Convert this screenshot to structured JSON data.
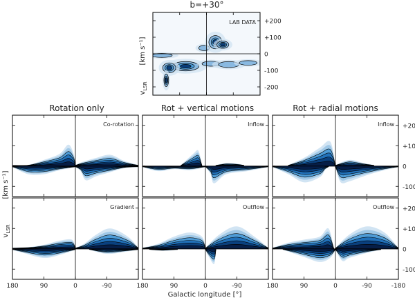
{
  "figure": {
    "top_title": "b=+30°",
    "column_titles": [
      "Rotation only",
      "Rot + vertical motions",
      "Rot + radial motions"
    ],
    "xlabel": "Galactic longitude [°]",
    "ylabel_main": "v",
    "ylabel_sub": "LSR",
    "ylabel_units": "[km s⁻¹]",
    "colors": {
      "light": "#cfe3f2",
      "mid": "#4a9ad6",
      "dark": "#0a3d7a",
      "deep": "#061c45",
      "line": "#000000"
    }
  },
  "chart_data": [
    {
      "id": "lab",
      "type": "heatmap",
      "title": "b=+30°",
      "label": "LAB DATA",
      "xlim": [
        180,
        -180
      ],
      "ylim": [
        -250,
        250
      ],
      "xticks": [],
      "yticks": [
        -200,
        -100,
        0,
        100,
        200
      ],
      "ytick_labels": [
        "-200",
        "-100",
        "0",
        "+100",
        "+200"
      ],
      "blobs": [
        {
          "l": 8,
          "v": 35,
          "dl": 18,
          "dv": 16,
          "level": 0.25
        },
        {
          "l": -30,
          "v": 70,
          "dl": 22,
          "dv": 40,
          "level": 0.95
        },
        {
          "l": -55,
          "v": 55,
          "dl": 20,
          "dv": 22,
          "level": 0.55
        },
        {
          "l": 150,
          "v": -10,
          "dl": 35,
          "dv": 12,
          "level": 0.3
        },
        {
          "l": 70,
          "v": -75,
          "dl": 45,
          "dv": 28,
          "level": 0.9
        },
        {
          "l": 125,
          "v": -85,
          "dl": 22,
          "dv": 30,
          "level": 0.5
        },
        {
          "l": 135,
          "v": -160,
          "dl": 8,
          "dv": 38,
          "level": 0.6
        },
        {
          "l": -15,
          "v": -60,
          "dl": 30,
          "dv": 15,
          "level": 0.35
        },
        {
          "l": -75,
          "v": -65,
          "dl": 35,
          "dv": 18,
          "level": 0.45
        },
        {
          "l": -140,
          "v": -55,
          "dl": 30,
          "dv": 14,
          "level": 0.25
        }
      ]
    },
    {
      "id": "co-rotation",
      "type": "area",
      "column": "Rotation only",
      "label": "Co-rotation",
      "xlim": [
        180,
        -180
      ],
      "ylim": [
        -150,
        250
      ],
      "upper": [
        [
          180,
          5
        ],
        [
          135,
          6
        ],
        [
          90,
          30
        ],
        [
          45,
          60
        ],
        [
          20,
          105
        ],
        [
          5,
          60
        ],
        [
          0,
          5
        ]
      ],
      "upper2": [
        [
          0,
          5
        ],
        [
          -20,
          20
        ],
        [
          -60,
          40
        ],
        [
          -100,
          55
        ],
        [
          -140,
          25
        ],
        [
          -180,
          5
        ]
      ],
      "lower": [
        [
          180,
          -5
        ],
        [
          135,
          -40
        ],
        [
          90,
          -40
        ],
        [
          45,
          -20
        ],
        [
          0,
          -5
        ]
      ],
      "lower2": [
        [
          0,
          -5
        ],
        [
          -15,
          -25
        ],
        [
          -30,
          -70
        ],
        [
          -60,
          -50
        ],
        [
          -100,
          -30
        ],
        [
          -140,
          -10
        ],
        [
          -180,
          -5
        ]
      ]
    },
    {
      "id": "inflow",
      "type": "area",
      "column": "Rot + vertical motions",
      "label": "Inflow",
      "xlim": [
        180,
        -180
      ],
      "ylim": [
        -150,
        250
      ],
      "upper": [
        [
          70,
          5
        ],
        [
          35,
          60
        ],
        [
          20,
          75
        ],
        [
          10,
          5
        ]
      ],
      "upper2": [
        [
          -30,
          5
        ],
        [
          -60,
          15
        ],
        [
          -90,
          12
        ],
        [
          -110,
          5
        ]
      ],
      "lower": [
        [
          180,
          -5
        ],
        [
          135,
          -25
        ],
        [
          90,
          -15
        ],
        [
          45,
          -20
        ],
        [
          0,
          -5
        ]
      ],
      "lower2": [
        [
          0,
          -5
        ],
        [
          -15,
          -40
        ],
        [
          -25,
          -85
        ],
        [
          -60,
          -40
        ],
        [
          -120,
          -25
        ],
        [
          -180,
          -5
        ]
      ]
    },
    {
      "id": "inflow-radial",
      "type": "area",
      "column": "Rot + radial motions",
      "label": "Inflow",
      "xlim": [
        180,
        -180
      ],
      "ylim": [
        -150,
        250
      ],
      "upper": [
        [
          135,
          5
        ],
        [
          90,
          40
        ],
        [
          45,
          90
        ],
        [
          15,
          120
        ],
        [
          0,
          5
        ]
      ],
      "upper2": [
        [
          0,
          5
        ],
        [
          -40,
          30
        ],
        [
          -80,
          15
        ],
        [
          -110,
          5
        ]
      ],
      "lower": [
        [
          180,
          -5
        ],
        [
          135,
          -40
        ],
        [
          90,
          -80
        ],
        [
          45,
          -55
        ],
        [
          30,
          -20
        ],
        [
          20,
          -5
        ]
      ],
      "lower2": [
        [
          0,
          -5
        ],
        [
          -15,
          -80
        ],
        [
          -40,
          -75
        ],
        [
          -90,
          -45
        ],
        [
          -140,
          -20
        ],
        [
          -180,
          -5
        ]
      ]
    },
    {
      "id": "gradient",
      "type": "area",
      "column": "Rotation only",
      "label": "Gradient",
      "xlim": [
        180,
        -180
      ],
      "ylim": [
        -150,
        250
      ],
      "upper": [
        [
          180,
          5
        ],
        [
          135,
          8
        ],
        [
          90,
          20
        ],
        [
          45,
          40
        ],
        [
          10,
          45
        ],
        [
          0,
          5
        ]
      ],
      "upper2": [
        [
          0,
          5
        ],
        [
          -25,
          25
        ],
        [
          -60,
          70
        ],
        [
          -100,
          100
        ],
        [
          -150,
          60
        ],
        [
          -180,
          5
        ]
      ],
      "lower": [
        [
          180,
          -5
        ],
        [
          150,
          -20
        ],
        [
          90,
          -45
        ],
        [
          45,
          -30
        ],
        [
          0,
          -5
        ]
      ],
      "lower2": [
        [
          -40,
          -5
        ],
        [
          -90,
          -25
        ],
        [
          -140,
          -15
        ],
        [
          -180,
          -5
        ]
      ]
    },
    {
      "id": "outflow",
      "type": "area",
      "column": "Rot + vertical motions",
      "label": "Outflow",
      "xlim": [
        180,
        -180
      ],
      "ylim": [
        -150,
        250
      ],
      "upper": [
        [
          180,
          5
        ],
        [
          135,
          25
        ],
        [
          90,
          60
        ],
        [
          45,
          80
        ],
        [
          10,
          60
        ],
        [
          0,
          5
        ]
      ],
      "upper2": [
        [
          0,
          5
        ],
        [
          -40,
          70
        ],
        [
          -90,
          110
        ],
        [
          -140,
          60
        ],
        [
          -180,
          5
        ]
      ],
      "lower": [
        [
          160,
          -5
        ],
        [
          120,
          -10
        ],
        [
          80,
          -5
        ]
      ],
      "lower2": [
        [
          0,
          -5
        ],
        [
          -10,
          -40
        ],
        [
          -25,
          -75
        ],
        [
          -30,
          -5
        ]
      ]
    },
    {
      "id": "outflow-radial",
      "type": "area",
      "column": "Rot + radial motions",
      "label": "Outflow",
      "xlim": [
        180,
        -180
      ],
      "ylim": [
        -150,
        250
      ],
      "upper": [
        [
          180,
          5
        ],
        [
          135,
          30
        ],
        [
          90,
          45
        ],
        [
          45,
          60
        ],
        [
          20,
          100
        ],
        [
          5,
          5
        ]
      ],
      "upper2": [
        [
          0,
          5
        ],
        [
          -40,
          70
        ],
        [
          -90,
          110
        ],
        [
          -140,
          80
        ],
        [
          -180,
          5
        ]
      ],
      "lower": [
        [
          150,
          -5
        ],
        [
          90,
          -40
        ],
        [
          45,
          -65
        ],
        [
          15,
          -45
        ],
        [
          0,
          -5
        ]
      ],
      "lower2": [
        [
          0,
          -5
        ],
        [
          -20,
          -60
        ],
        [
          -40,
          -45
        ],
        [
          -90,
          -20
        ],
        [
          -130,
          -5
        ]
      ]
    }
  ],
  "axes": {
    "x_ticks": [
      180,
      90,
      0,
      -90,
      -180
    ],
    "x_tick_labels": [
      "180",
      "90",
      "0",
      "-90",
      "-180"
    ],
    "x_tick_labels_short": [
      "180",
      "90",
      "0",
      "-90"
    ],
    "y_ticks": [
      -100,
      0,
      100,
      200
    ],
    "y_tick_labels": [
      "-100",
      "0",
      "+100",
      "+200"
    ]
  }
}
